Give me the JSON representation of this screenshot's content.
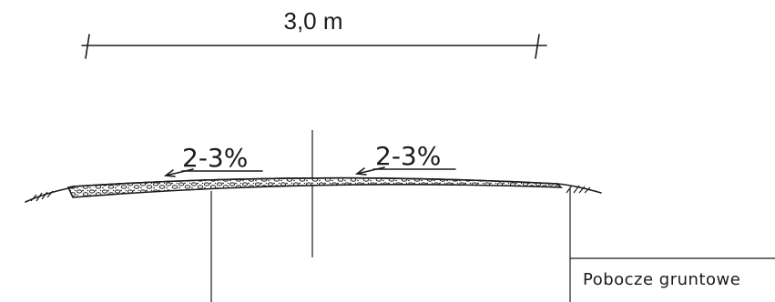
{
  "dimension": {
    "width_label": "3,0 m"
  },
  "slopes": {
    "left_label": "2-3%",
    "right_label": "2-3%"
  },
  "legend": {
    "label": "Pobocze gruntowe"
  },
  "colors": {
    "ink": "#1a1a1a",
    "background": "#ffffff"
  }
}
